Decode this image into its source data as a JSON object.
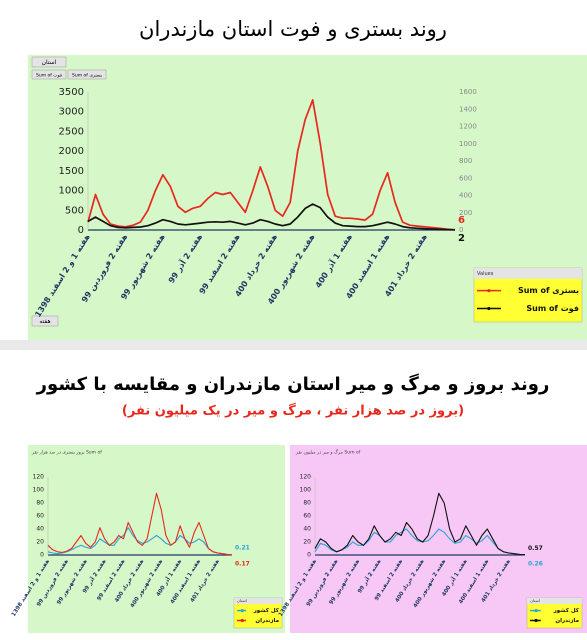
{
  "chart_data": [
    {
      "type": "line",
      "title": "روند بستری و فوت استان مازندران",
      "filter_button": "استان",
      "field_buttons": [
        "Sum of بستری",
        "Sum of فوت"
      ],
      "axis_button": "هفته",
      "legend_title": "Values",
      "categories": [
        "هفته 1 و 2 اسفند 1398",
        null,
        null,
        null,
        null,
        "هفته 2 فروردین 99",
        null,
        null,
        null,
        null,
        "هفته 2 شهریور 99",
        null,
        null,
        null,
        null,
        "هفته 2 آذر 99",
        null,
        null,
        null,
        null,
        "هفته 2 اسفند 99",
        null,
        null,
        null,
        null,
        "هفته 2 خرداد 400",
        null,
        null,
        null,
        null,
        "هفته 2 شهریور 400",
        null,
        null,
        null,
        null,
        "هفته 1 آذر 400",
        null,
        null,
        null,
        null,
        "هفته 1 اسفند 400",
        null,
        null,
        null,
        null,
        "هفته 2 خرداد 401",
        null,
        null,
        null,
        null
      ],
      "series": [
        {
          "name": "Sum of بستری",
          "color": "#e8281e",
          "values": [
            200,
            900,
            400,
            150,
            100,
            80,
            120,
            200,
            500,
            1000,
            1400,
            1100,
            600,
            450,
            550,
            600,
            800,
            950,
            900,
            950,
            700,
            450,
            1000,
            1600,
            1100,
            500,
            350,
            700,
            2000,
            2800,
            3300,
            2200,
            900,
            350,
            300,
            300,
            280,
            250,
            400,
            1000,
            1450,
            700,
            200,
            120,
            100,
            80,
            60,
            40,
            20,
            6
          ]
        },
        {
          "name": "Sum of فوت",
          "color": "#111111",
          "axis": "y2",
          "values": [
            100,
            150,
            100,
            50,
            30,
            25,
            30,
            35,
            50,
            80,
            120,
            100,
            70,
            60,
            70,
            80,
            90,
            95,
            90,
            100,
            80,
            60,
            80,
            120,
            100,
            70,
            50,
            70,
            150,
            250,
            300,
            260,
            150,
            80,
            50,
            45,
            40,
            40,
            50,
            70,
            90,
            70,
            40,
            25,
            20,
            15,
            10,
            8,
            5,
            2
          ]
        }
      ],
      "ylim": [
        0,
        3500
      ],
      "yticks": [
        0,
        500,
        1000,
        1500,
        2000,
        2500,
        3000,
        3500
      ],
      "y2lim": [
        0,
        1600
      ],
      "y2ticks": [
        0,
        200,
        400,
        600,
        800,
        1000,
        1200,
        1400,
        1600
      ]
    },
    {
      "type": "line",
      "title": "بروز بستری در صد هزار نفر Sum of",
      "legend_title": "استان",
      "categories": [
        "هفته 1 و 2 اسفند 1398",
        null,
        null,
        null,
        "هفته 2 فروردین 99",
        null,
        null,
        null,
        "هفته 2 شهریور 99",
        null,
        null,
        null,
        "هفته 2 آذر 99",
        null,
        null,
        null,
        "هفته 2 اسفند 99",
        null,
        null,
        null,
        "هفته 2 خرداد 400",
        null,
        null,
        null,
        "هفته 2 شهریور 400",
        null,
        null,
        null,
        "هفته 1 آذر 400",
        null,
        null,
        null,
        "هفته 1 اسفند 400",
        null,
        null,
        null,
        "هفته 2 خرداد 401",
        null,
        null,
        null
      ],
      "series": [
        {
          "name": "کل کشور",
          "color": "#2aa6d4",
          "values": [
            5,
            3,
            2,
            3,
            5,
            8,
            12,
            15,
            12,
            10,
            15,
            25,
            20,
            15,
            15,
            25,
            30,
            42,
            30,
            22,
            18,
            20,
            25,
            30,
            25,
            18,
            15,
            20,
            30,
            25,
            18,
            20,
            25,
            20,
            10,
            5,
            3,
            2,
            1,
            0.21
          ]
        },
        {
          "name": "مازندران",
          "color": "#e8281e",
          "values": [
            15,
            8,
            5,
            4,
            6,
            10,
            20,
            30,
            18,
            12,
            20,
            42,
            25,
            15,
            20,
            30,
            25,
            50,
            35,
            20,
            15,
            25,
            60,
            95,
            70,
            30,
            15,
            20,
            45,
            25,
            12,
            35,
            50,
            30,
            10,
            5,
            3,
            2,
            1,
            0.17
          ]
        }
      ],
      "ylim": [
        0,
        120
      ],
      "yticks": [
        0,
        20,
        40,
        60,
        80,
        100,
        120
      ]
    },
    {
      "type": "line",
      "title": "مرگ و میر در میلیون نفر Sum of",
      "legend_title": "استان",
      "categories": [
        "هفته 1 و 2 اسفند 1398",
        null,
        null,
        null,
        "هفته 2 فروردین 99",
        null,
        null,
        null,
        "هفته 2 شهریور 99",
        null,
        null,
        null,
        "هفته 2 آذر 99",
        null,
        null,
        null,
        "هفته 2 اسفند 99",
        null,
        null,
        null,
        "هفته 2 خرداد 400",
        null,
        null,
        null,
        "هفته 2 شهریور 400",
        null,
        null,
        null,
        "هفته 1 آذر 400",
        null,
        null,
        null,
        "هفته 1 اسفند 400",
        null,
        null,
        null,
        "هفته 2 خرداد 401",
        null,
        null,
        null
      ],
      "series": [
        {
          "name": "کل کشور",
          "color": "#2aa6d4",
          "values": [
            5,
            18,
            15,
            8,
            5,
            8,
            12,
            20,
            15,
            15,
            22,
            35,
            30,
            20,
            20,
            30,
            35,
            40,
            30,
            22,
            20,
            22,
            30,
            40,
            35,
            25,
            18,
            20,
            30,
            25,
            18,
            22,
            30,
            20,
            10,
            5,
            3,
            2,
            1,
            0.26
          ]
        },
        {
          "name": "مازندران",
          "color": "#111111",
          "values": [
            10,
            25,
            20,
            10,
            5,
            8,
            15,
            30,
            20,
            15,
            25,
            45,
            30,
            20,
            25,
            35,
            30,
            50,
            40,
            25,
            20,
            30,
            60,
            95,
            80,
            40,
            20,
            25,
            45,
            30,
            15,
            30,
            40,
            25,
            10,
            5,
            3,
            2,
            1,
            0.57
          ]
        }
      ],
      "ylim": [
        0,
        120
      ],
      "yticks": [
        0,
        20,
        40,
        60,
        80,
        100,
        120
      ]
    }
  ],
  "section_2": {
    "title": "روند بروز و مرگ و میر استان مازندران و مقایسه با کشور",
    "subtitle": "(بروز در صد هزار نفر ، مرگ و میر در یک میلیون نفر)"
  }
}
